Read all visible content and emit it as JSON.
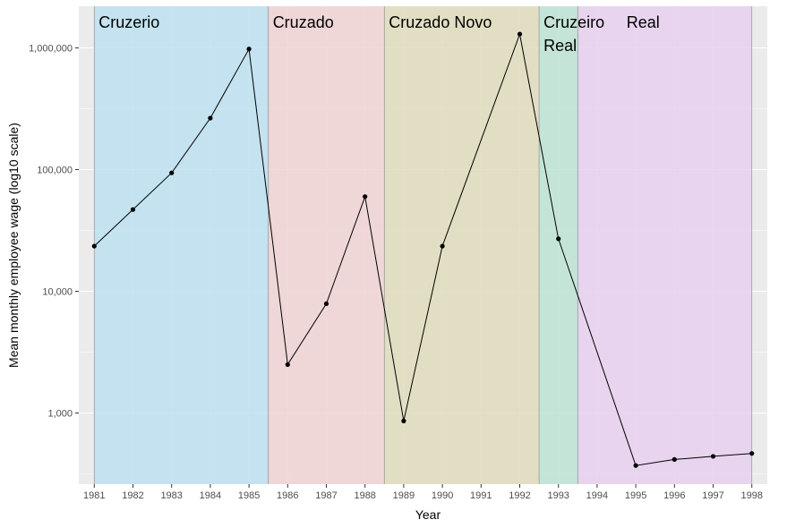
{
  "chart_data": {
    "type": "line",
    "title": "",
    "xlabel": "Year",
    "ylabel": "Mean monthly employee wage (log10 scale)",
    "y_scale": "log10",
    "xlim": [
      1980.6,
      1998.4
    ],
    "ylim": [
      260,
      2200000
    ],
    "grid": true,
    "x_ticks": [
      1981,
      1982,
      1983,
      1984,
      1985,
      1986,
      1987,
      1988,
      1989,
      1990,
      1991,
      1992,
      1993,
      1994,
      1995,
      1996,
      1997,
      1998
    ],
    "y_ticks": [
      {
        "value": 1000,
        "label": "1,000"
      },
      {
        "value": 10000,
        "label": "10,000"
      },
      {
        "value": 100000,
        "label": "100,000"
      },
      {
        "value": 1000000,
        "label": "1,000,000"
      }
    ],
    "currency_eras": [
      {
        "name": "Cruzerio",
        "start": 1981,
        "end": 1985.5,
        "color": "#bde0f0"
      },
      {
        "name": "Cruzado",
        "start": 1985.5,
        "end": 1988.5,
        "color": "#f0d2d4"
      },
      {
        "name": "Cruzado Novo",
        "start": 1988.5,
        "end": 1992.5,
        "color": "#dfdcbc"
      },
      {
        "name": "Cruzeiro Real",
        "start": 1992.5,
        "end": 1993.5,
        "color": "#bde3d5"
      },
      {
        "name": "Real",
        "start": 1993.5,
        "end": 1998,
        "color": "#e8d0ee"
      }
    ],
    "series": [
      {
        "x": [
          1981,
          1982,
          1983,
          1984,
          1985,
          1986,
          1987,
          1988,
          1989,
          1990,
          1992,
          1993,
          1995,
          1996,
          1997,
          1998
        ],
        "values": [
          23500,
          47000,
          94000,
          265000,
          980000,
          2500,
          7900,
          60000,
          860,
          23500,
          1300000,
          27000,
          370,
          415,
          440,
          465
        ]
      }
    ]
  }
}
